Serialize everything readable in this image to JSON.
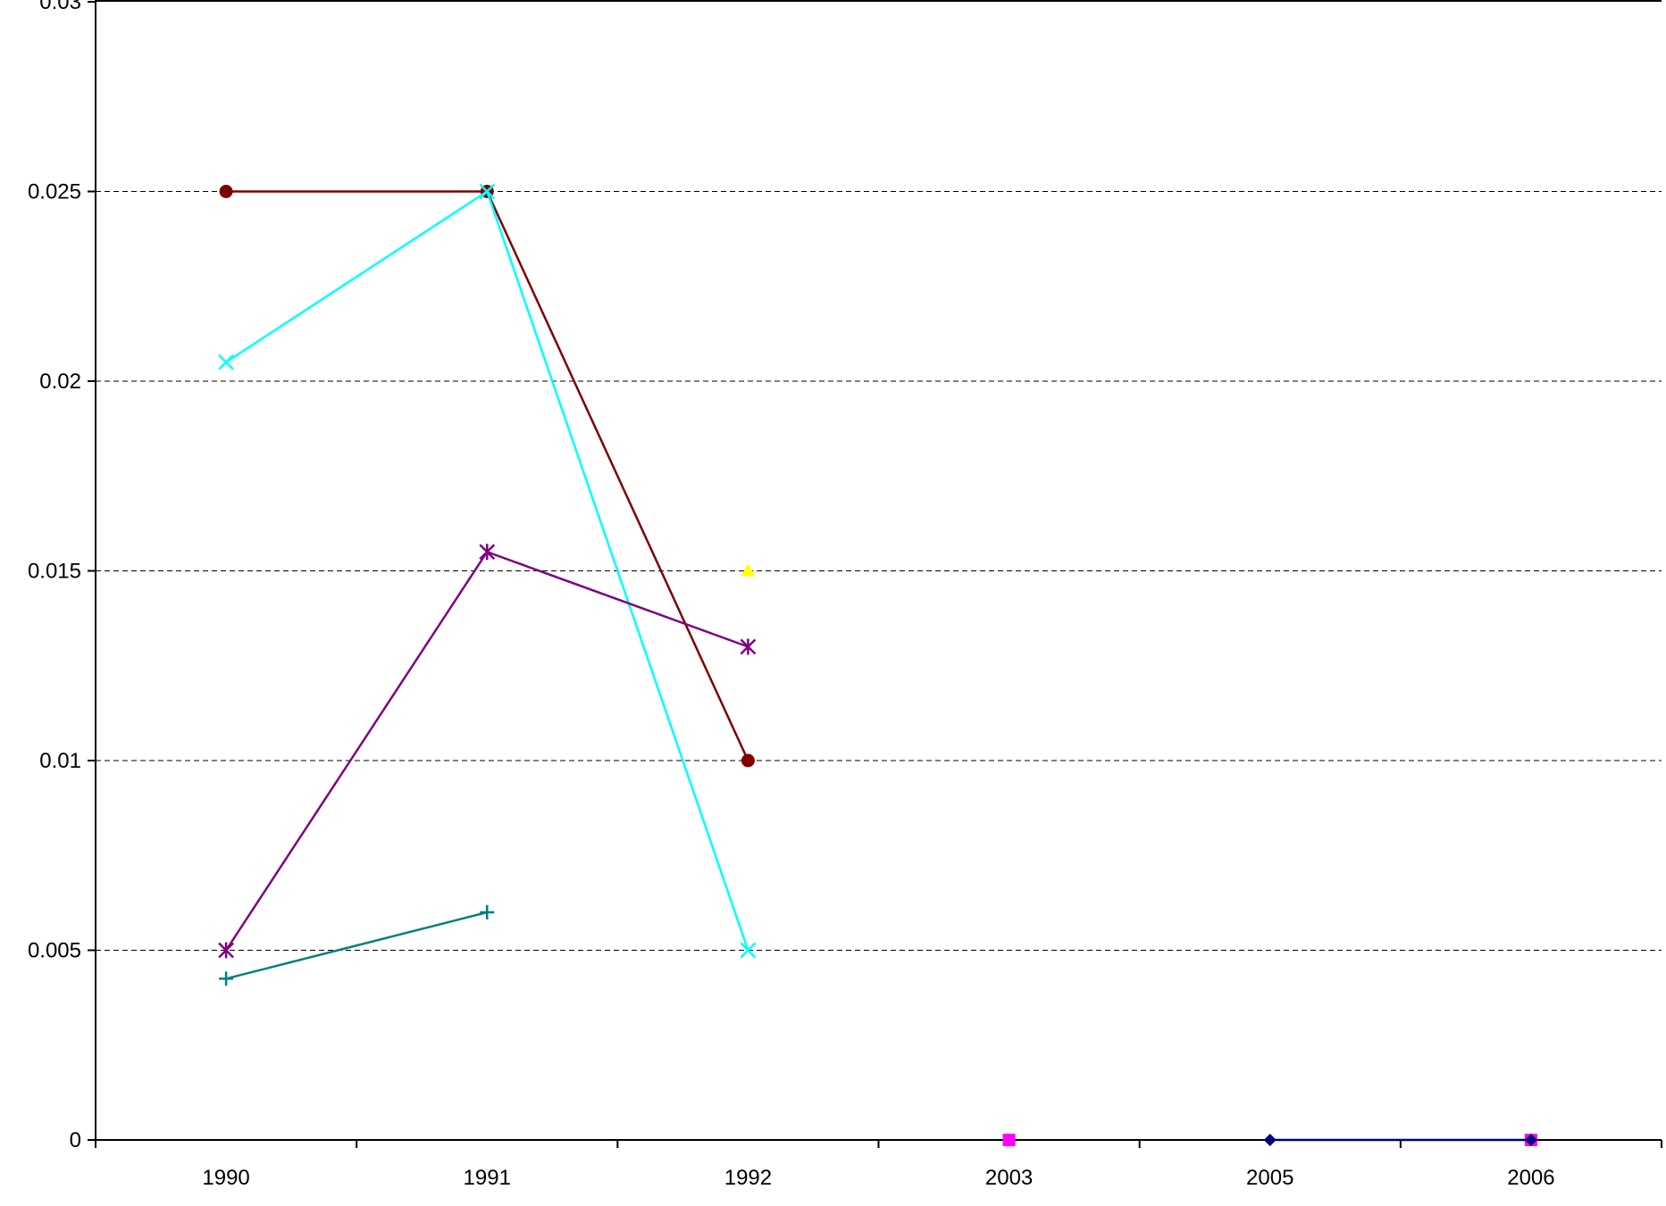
{
  "chart_data": {
    "type": "line",
    "title": "",
    "xlabel": "",
    "ylabel": "",
    "categories": [
      "1990",
      "1991",
      "1992",
      "2003",
      "2005",
      "2006"
    ],
    "ylim": [
      0,
      0.03
    ],
    "yticks": [
      "0",
      "0.005",
      "0.01",
      "0.015",
      "0.02",
      "0.025",
      "0.03"
    ],
    "grid": "horizontal dashed",
    "legend": "none",
    "series": [
      {
        "color": "#800000",
        "marker": "circle",
        "values": [
          0.025,
          0.025,
          0.01,
          null,
          null,
          null
        ]
      },
      {
        "color": "#00FFFF",
        "marker": "x",
        "values": [
          0.0205,
          0.025,
          0.005,
          null,
          null,
          null
        ]
      },
      {
        "color": "#800080",
        "marker": "star",
        "values": [
          0.005,
          0.0155,
          0.013,
          null,
          null,
          null
        ]
      },
      {
        "color": "#008080",
        "marker": "plus",
        "values": [
          0.00425,
          0.006,
          null,
          null,
          null,
          null
        ]
      },
      {
        "color": "#FFFF00",
        "marker": "triangle",
        "values": [
          null,
          null,
          0.015,
          null,
          null,
          null
        ]
      },
      {
        "color": "#FF00FF",
        "marker": "square",
        "values": [
          null,
          null,
          null,
          0,
          null,
          0
        ]
      },
      {
        "color": "#000080",
        "marker": "diamond",
        "values": [
          null,
          null,
          null,
          null,
          0,
          0
        ]
      }
    ]
  }
}
